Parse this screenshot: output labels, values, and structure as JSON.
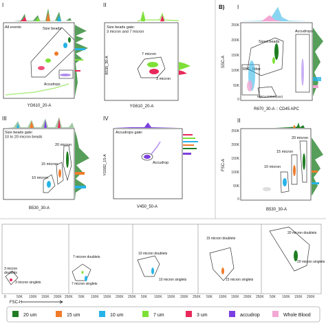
{
  "figure": {
    "section_b_label": "B)",
    "panels": [
      {
        "roman": "I",
        "box_label": "All events",
        "gate_labels": [
          "Size beads",
          "Accudrops"
        ],
        "xlabel": "YG610_20-A",
        "ylabel": ""
      },
      {
        "roman": "II",
        "box_label": "Size beads gate:\n3 micron and 7 micron",
        "gate_labels": [
          "7 micron",
          "3 micron"
        ],
        "xlabel": "YG610_20-A",
        "ylabel": "B530_30-A"
      },
      {
        "roman": "I",
        "box_label": "",
        "gate_labels": [
          "Sized beads",
          "Accudrops",
          "RBC, Other",
          "WBCs (CD45 pos)"
        ],
        "xlabel": "R670_30-A :: CD45 APC",
        "ylabel": "SSC-A",
        "y_ticks": [
          "250K",
          "200K",
          "150K",
          "100K",
          "50K",
          "0"
        ]
      },
      {
        "roman": "III",
        "box_label": "Size beads gate:\n10 to 20 micron beads",
        "gate_labels": [
          "20 micron",
          "15 micron",
          "10 micron"
        ],
        "xlabel": "B530_30-A",
        "ylabel": ""
      },
      {
        "roman": "IV",
        "box_label": "Accudrops gate:",
        "gate_labels": [
          "Accudrop"
        ],
        "xlabel": "V450_50-A",
        "ylabel": "YG582_15-A"
      },
      {
        "roman": "II",
        "box_label": "",
        "gate_labels": [
          "20 micron",
          "15 micron",
          "10 micron"
        ],
        "xlabel": "B530_30-A",
        "ylabel": "FSC-A",
        "y_ticks": [
          "250K",
          "200K",
          "150K",
          "100K",
          "50K",
          "0"
        ]
      }
    ],
    "bottom_strip": {
      "xlabel": "FSC-H",
      "panel_labels": [
        [
          "3 micron",
          "doublets",
          "3 micron singlets"
        ],
        [
          "7 micron doublets",
          "7 micron singlets"
        ],
        [
          "10 micron doublets",
          "10 micron singlets"
        ],
        [
          "15 micron doublets",
          "15 micron singlets"
        ],
        [
          "20 micron doublets",
          "20 micron singlets"
        ]
      ],
      "x_ticks": [
        "0",
        "50K",
        "100K",
        "150K",
        "200K",
        "250K"
      ]
    },
    "legend": [
      {
        "label": "20 um",
        "color": "#1e7d21"
      },
      {
        "label": "15 um",
        "color": "#f07b2a"
      },
      {
        "label": "10 um",
        "color": "#26b3e8"
      },
      {
        "label": "7 um",
        "color": "#7ee037"
      },
      {
        "label": "3 um",
        "color": "#e8285a"
      },
      {
        "label": "accudrop",
        "color": "#7b3fe0"
      },
      {
        "label": "Whole Blood",
        "color": "#f2a7d5"
      }
    ]
  }
}
